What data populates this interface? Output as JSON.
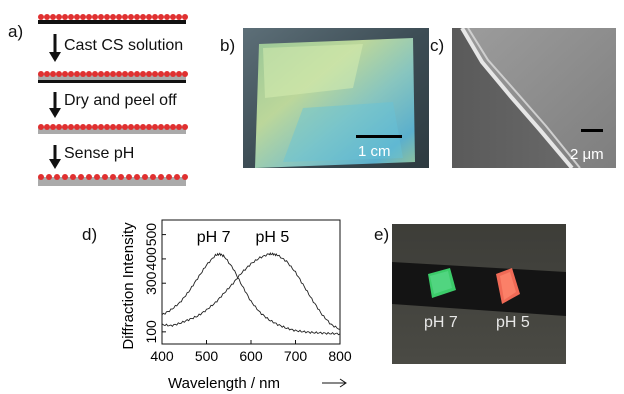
{
  "panel_a": {
    "label": "a)",
    "steps": [
      "Cast CS solution",
      "Dry and peel off",
      "Sense pH"
    ]
  },
  "panel_b": {
    "label": "b)",
    "scale_bar": "1 cm"
  },
  "panel_c": {
    "label": "c)",
    "scale_bar": "2 μm"
  },
  "panel_d": {
    "label": "d)",
    "chart_data": {
      "type": "line",
      "xlabel": "Wavelength / nm",
      "ylabel": "Diffraction Intensity",
      "xlim": [
        400,
        800
      ],
      "ylim": [
        50,
        560
      ],
      "xticks": [
        400,
        500,
        600,
        700,
        800
      ],
      "yticks": [
        100,
        300,
        400,
        500
      ],
      "annotations": [
        "pH 7",
        "pH 5"
      ],
      "series": [
        {
          "x": [
            400,
            420,
            440,
            460,
            480,
            500,
            520,
            530,
            540,
            560,
            580,
            600,
            620,
            640,
            660,
            680,
            700,
            720,
            740,
            760,
            780,
            800
          ],
          "y": [
            170,
            190,
            220,
            265,
            320,
            375,
            415,
            420,
            410,
            360,
            290,
            225,
            180,
            150,
            130,
            115,
            105,
            100,
            97,
            95,
            93,
            92
          ]
        },
        {
          "x": [
            400,
            420,
            440,
            460,
            480,
            500,
            520,
            540,
            560,
            580,
            600,
            620,
            640,
            650,
            660,
            680,
            700,
            720,
            740,
            760,
            780,
            800
          ],
          "y": [
            130,
            125,
            135,
            150,
            165,
            190,
            220,
            260,
            300,
            345,
            380,
            405,
            420,
            420,
            415,
            390,
            345,
            285,
            225,
            170,
            130,
            110
          ]
        }
      ]
    }
  },
  "panel_e": {
    "label": "e)",
    "labels": [
      "pH 7",
      "pH 5"
    ]
  },
  "colors": {
    "dot": "#e03030",
    "film": "#aaaaaa",
    "substrate": "#111111"
  }
}
